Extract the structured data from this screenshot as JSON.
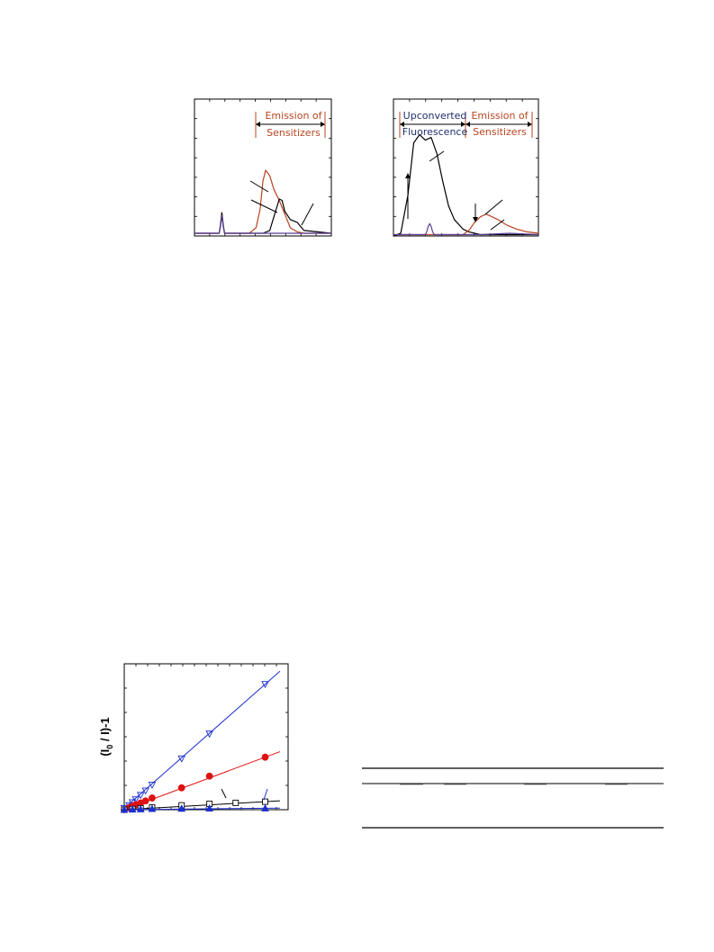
{
  "colors": {
    "red": "#b8441f",
    "black": "#000000",
    "purple": "#5a3f9a",
    "blue": "#1a2fd0",
    "navy": "#1f2f6e",
    "red_marker": "#e01010"
  },
  "chart_data": [
    {
      "type": "line",
      "title": "",
      "xlabel": "",
      "ylabel": "",
      "xlim": [
        0,
        100
      ],
      "ylim": [
        0,
        100
      ],
      "annotation": {
        "label_line1": "Emission of",
        "label_line2": "Sensitizers",
        "color": "#b8441f"
      },
      "series": [
        {
          "color": "#b8441f",
          "x": [
            0,
            10,
            18,
            19,
            20,
            21,
            22,
            40,
            45,
            48,
            50,
            52,
            55,
            58,
            62,
            66,
            70,
            75,
            80,
            100
          ],
          "y": [
            2,
            2,
            2,
            8,
            17,
            8,
            2,
            2,
            6,
            20,
            40,
            48,
            44,
            34,
            26,
            16,
            6,
            3,
            2,
            2
          ]
        },
        {
          "color": "#000000",
          "x": [
            0,
            10,
            18,
            19,
            20,
            21,
            22,
            50,
            55,
            58,
            62,
            64,
            66,
            70,
            75,
            80,
            100
          ],
          "y": [
            2,
            2,
            2,
            8,
            17,
            8,
            2,
            2,
            4,
            14,
            27,
            26,
            18,
            12,
            10,
            4,
            2
          ]
        },
        {
          "color": "#5a3f9a",
          "x": [
            0,
            10,
            18,
            19,
            20,
            21,
            22,
            50,
            100
          ],
          "y": [
            2,
            2,
            2,
            7,
            15,
            7,
            2,
            2,
            2
          ]
        }
      ]
    },
    {
      "type": "line",
      "title": "",
      "xlabel": "",
      "ylabel": "",
      "xlim": [
        0,
        100
      ],
      "ylim": [
        0,
        100
      ],
      "annotation": {
        "left_line1": "Upconverted",
        "left_line2": "Fluorescence",
        "left_color": "#1f2f6e",
        "right_line1": "Emission of",
        "right_line2": "Sensitizers",
        "right_color": "#b8441f"
      },
      "series": [
        {
          "color": "#000000",
          "x": [
            0,
            5,
            10,
            14,
            18,
            22,
            26,
            30,
            34,
            38,
            42,
            48,
            52,
            56,
            60,
            70,
            80,
            100
          ],
          "y": [
            0,
            2,
            30,
            68,
            74,
            70,
            72,
            60,
            40,
            22,
            12,
            5,
            3,
            2,
            1,
            1,
            1,
            1
          ]
        },
        {
          "color": "#b8441f",
          "x": [
            0,
            48,
            52,
            56,
            60,
            64,
            68,
            72,
            78,
            85,
            92,
            100
          ],
          "y": [
            1,
            1,
            4,
            10,
            14,
            16,
            14,
            12,
            8,
            5,
            3,
            2
          ]
        },
        {
          "color": "#5a3f9a",
          "x": [
            0,
            22,
            23,
            24,
            25,
            26,
            27,
            28,
            60,
            80,
            100
          ],
          "y": [
            1,
            1,
            3,
            7,
            9,
            7,
            3,
            1,
            1,
            2,
            1
          ]
        }
      ]
    },
    {
      "type": "scatter",
      "title": "",
      "xlabel": "",
      "ylabel": "(I0 / I)-1",
      "ylabel_main": "(I",
      "ylabel_sub": "0",
      "ylabel_rest": " / I)-1",
      "xlim": [
        0,
        100
      ],
      "ylim": [
        0,
        100
      ],
      "series": [
        {
          "marker": "triangle-down-open",
          "color": "#1a2fd0",
          "x": [
            0,
            3,
            5,
            7,
            10,
            13,
            17,
            35,
            52,
            86
          ],
          "y": [
            1,
            3,
            5,
            7,
            10,
            13,
            17,
            35,
            52,
            86
          ]
        },
        {
          "marker": "circle-filled",
          "color": "#e01010",
          "x": [
            0,
            3,
            5,
            7,
            10,
            13,
            17,
            35,
            52,
            86
          ],
          "y": [
            0,
            1.3,
            2.4,
            3.4,
            4.6,
            6,
            8,
            15,
            23,
            36
          ]
        },
        {
          "marker": "square-open",
          "color": "#000000",
          "x": [
            0,
            5,
            10,
            17,
            35,
            52,
            68,
            86
          ],
          "y": [
            0,
            0.5,
            1,
            1.6,
            3,
            4,
            4.7,
            5.5
          ]
        },
        {
          "marker": "triangle-up-filled",
          "color": "#1a2fd0",
          "x": [
            0,
            5,
            10,
            17,
            35,
            52,
            86
          ],
          "y": [
            0,
            0.2,
            0.4,
            0.6,
            0.8,
            0.9,
            1
          ]
        }
      ]
    }
  ],
  "table": {
    "title": "",
    "columns": [
      "",
      "",
      "",
      "",
      ""
    ],
    "rows": []
  }
}
